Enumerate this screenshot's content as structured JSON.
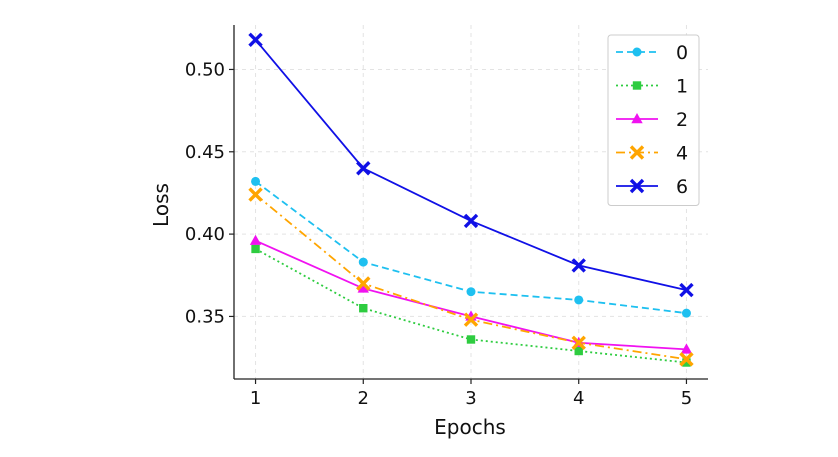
{
  "chart_data": {
    "type": "line",
    "title": "",
    "xlabel": "Epochs",
    "ylabel": "Loss",
    "x": [
      1,
      2,
      3,
      4,
      5
    ],
    "xticks": [
      "1",
      "2",
      "3",
      "4",
      "5"
    ],
    "yticks": [
      "0.35",
      "0.40",
      "0.45",
      "0.50"
    ],
    "xlim": [
      0.8,
      5.2
    ],
    "ylim": [
      0.312,
      0.527
    ],
    "grid": true,
    "legend_position": "top-right",
    "series": [
      {
        "name": "0",
        "values": [
          0.432,
          0.383,
          0.365,
          0.36,
          0.352
        ],
        "color": "#1ec0f0",
        "marker": "circle",
        "line_style": "dashed"
      },
      {
        "name": "1",
        "values": [
          0.391,
          0.355,
          0.336,
          0.329,
          0.322
        ],
        "color": "#2ecc40",
        "marker": "square",
        "line_style": "dotted"
      },
      {
        "name": "2",
        "values": [
          0.396,
          0.367,
          0.35,
          0.334,
          0.33
        ],
        "color": "#f012f0",
        "marker": "triangle",
        "line_style": "solid"
      },
      {
        "name": "4",
        "values": [
          0.424,
          0.37,
          0.348,
          0.334,
          0.324
        ],
        "color": "#ffa500",
        "marker": "x",
        "line_style": "dashdot"
      },
      {
        "name": "6",
        "values": [
          0.518,
          0.44,
          0.408,
          0.381,
          0.366
        ],
        "color": "#1010e6",
        "marker": "x",
        "line_style": "solid"
      }
    ]
  }
}
